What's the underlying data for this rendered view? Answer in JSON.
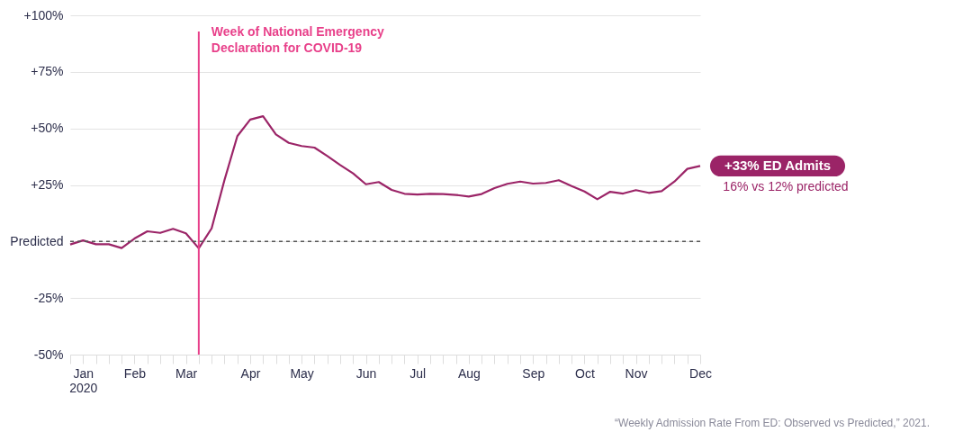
{
  "chart_data": {
    "type": "line",
    "x": [
      "2019-12-29",
      "2020-01-05",
      "2020-01-12",
      "2020-01-19",
      "2020-01-26",
      "2020-02-02",
      "2020-02-09",
      "2020-02-16",
      "2020-02-23",
      "2020-03-01",
      "2020-03-08",
      "2020-03-15",
      "2020-03-22",
      "2020-03-29",
      "2020-04-05",
      "2020-04-12",
      "2020-04-19",
      "2020-04-26",
      "2020-05-03",
      "2020-05-10",
      "2020-05-17",
      "2020-05-24",
      "2020-05-31",
      "2020-06-07",
      "2020-06-14",
      "2020-06-21",
      "2020-06-28",
      "2020-07-05",
      "2020-07-12",
      "2020-07-19",
      "2020-07-26",
      "2020-08-02",
      "2020-08-09",
      "2020-08-16",
      "2020-08-23",
      "2020-08-30",
      "2020-09-06",
      "2020-09-13",
      "2020-09-20",
      "2020-09-27",
      "2020-10-04",
      "2020-10-11",
      "2020-10-18",
      "2020-10-25",
      "2020-11-01",
      "2020-11-08",
      "2020-11-15",
      "2020-11-22",
      "2020-11-29",
      "2020-12-06"
    ],
    "series": [
      {
        "color": "#9b2467",
        "values": [
          -1.3,
          0.5,
          -1.2,
          -1.2,
          -2.9,
          1.3,
          4.5,
          3.8,
          5.6,
          3.6,
          -3.0,
          5.8,
          27.2,
          46.6,
          53.9,
          55.4,
          47.3,
          43.6,
          42.2,
          41.5,
          37.8,
          33.8,
          30.1,
          25.3,
          26.3,
          22.8,
          21.1,
          20.8,
          21.1,
          21.0,
          20.6,
          19.9,
          21.0,
          23.6,
          25.5,
          26.5,
          25.6,
          25.9,
          27.1,
          24.5,
          22.1,
          18.7,
          22.0,
          21.2,
          22.7,
          21.5,
          22.3,
          26.5,
          32.1,
          33.4
        ]
      }
    ],
    "ylim": [
      -50,
      100
    ],
    "yticks": [
      {
        "value": -50,
        "label": "-50%"
      },
      {
        "value": -25,
        "label": "-25%"
      },
      {
        "value": 0,
        "label": "Predicted"
      },
      {
        "value": 25,
        "label": "+25%"
      },
      {
        "value": 50,
        "label": "+50%"
      },
      {
        "value": 75,
        "label": "+75%"
      },
      {
        "value": 100,
        "label": "+100%"
      }
    ],
    "xlim": [
      "2019-12-29",
      "2020-12-06"
    ],
    "xticks": [
      {
        "value": "2019-12-29",
        "label": null
      },
      {
        "value": "2020-01-05",
        "label": "Jan 2020"
      },
      {
        "value": "2020-01-12",
        "label": null
      },
      {
        "value": "2020-01-19",
        "label": null
      },
      {
        "value": "2020-01-26",
        "label": null
      },
      {
        "value": "2020-02-02",
        "label": "Feb"
      },
      {
        "value": "2020-02-09",
        "label": null
      },
      {
        "value": "2020-02-16",
        "label": null
      },
      {
        "value": "2020-02-23",
        "label": null
      },
      {
        "value": "2020-03-01",
        "label": "Mar"
      },
      {
        "value": "2020-03-08",
        "label": null
      },
      {
        "value": "2020-03-15",
        "label": null
      },
      {
        "value": "2020-03-22",
        "label": null
      },
      {
        "value": "2020-03-29",
        "label": null
      },
      {
        "value": "2020-04-05",
        "label": "Apr"
      },
      {
        "value": "2020-04-12",
        "label": null
      },
      {
        "value": "2020-04-19",
        "label": null
      },
      {
        "value": "2020-04-26",
        "label": null
      },
      {
        "value": "2020-05-03",
        "label": "May"
      },
      {
        "value": "2020-05-10",
        "label": null
      },
      {
        "value": "2020-05-17",
        "label": null
      },
      {
        "value": "2020-05-24",
        "label": null
      },
      {
        "value": "2020-05-31",
        "label": null
      },
      {
        "value": "2020-06-07",
        "label": "Jun"
      },
      {
        "value": "2020-06-14",
        "label": null
      },
      {
        "value": "2020-06-21",
        "label": null
      },
      {
        "value": "2020-06-28",
        "label": null
      },
      {
        "value": "2020-07-05",
        "label": "Jul"
      },
      {
        "value": "2020-07-12",
        "label": null
      },
      {
        "value": "2020-07-19",
        "label": null
      },
      {
        "value": "2020-07-26",
        "label": null
      },
      {
        "value": "2020-08-02",
        "label": "Aug"
      },
      {
        "value": "2020-08-09",
        "label": null
      },
      {
        "value": "2020-08-16",
        "label": null
      },
      {
        "value": "2020-08-23",
        "label": null
      },
      {
        "value": "2020-08-30",
        "label": null
      },
      {
        "value": "2020-09-06",
        "label": "Sep"
      },
      {
        "value": "2020-09-13",
        "label": null
      },
      {
        "value": "2020-09-20",
        "label": null
      },
      {
        "value": "2020-09-27",
        "label": null
      },
      {
        "value": "2020-10-04",
        "label": "Oct"
      },
      {
        "value": "2020-10-11",
        "label": null
      },
      {
        "value": "2020-10-18",
        "label": null
      },
      {
        "value": "2020-10-25",
        "label": null
      },
      {
        "value": "2020-11-01",
        "label": "Nov"
      },
      {
        "value": "2020-11-08",
        "label": null
      },
      {
        "value": "2020-11-15",
        "label": null
      },
      {
        "value": "2020-11-22",
        "label": null
      },
      {
        "value": "2020-11-29",
        "label": null
      },
      {
        "value": "2020-12-06",
        "label": "Dec"
      }
    ],
    "grid": "y",
    "marker": "none",
    "line_style": "solid",
    "ref_lines": [
      {
        "axis": "y",
        "value": 0,
        "color": "#555555",
        "line_style": "dashed"
      },
      {
        "axis": "x",
        "value": "2020-03-08",
        "label": "Week of National Emergency Declaration for COVID-19",
        "color": "#e8408a",
        "line_style": "solid"
      }
    ],
    "annotations": [
      {
        "text": "+33% ED Admits",
        "x": "2020-12-06",
        "y": 33.4
      },
      "16% vs 12% predicted",
      "“Weekly Admission Rate From ED: Observed vs Predicted,” 2021."
    ]
  }
}
